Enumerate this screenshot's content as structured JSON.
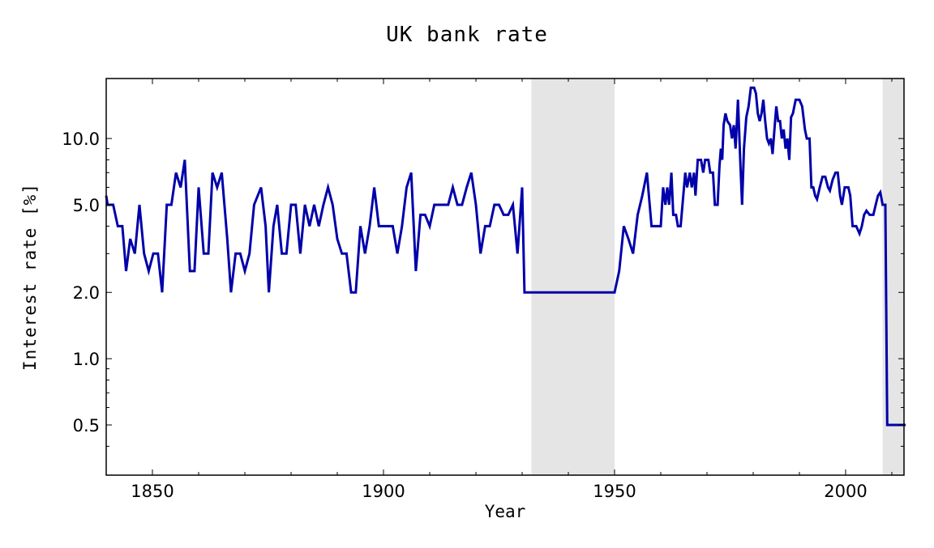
{
  "chart_data": {
    "type": "line",
    "title": "UK bank rate",
    "xlabel": "Year",
    "ylabel": "Interest rate [%]",
    "yscale": "log",
    "xlim": [
      1840,
      2013
    ],
    "ylim": [
      0.3,
      18
    ],
    "x_ticks": [
      1850,
      1900,
      1950,
      2000
    ],
    "y_ticks": [
      {
        "value": 0.5,
        "label": "0.5"
      },
      {
        "value": 1.0,
        "label": "1.0"
      },
      {
        "value": 2.0,
        "label": "2.0"
      },
      {
        "value": 5.0,
        "label": "5.0"
      },
      {
        "value": 10.0,
        "label": "10.0"
      }
    ],
    "line_color": "#0000aa",
    "shaded_regions": [
      {
        "x0": 1932,
        "x1": 1950,
        "color": "#e5e5e5"
      },
      {
        "x0": 2008,
        "x1": 2015,
        "color": "#e5e5e5"
      }
    ],
    "series": [
      {
        "name": "UK bank rate",
        "points": [
          [
            1840,
            5.5
          ],
          [
            1840.3,
            5
          ],
          [
            1841.5,
            5
          ],
          [
            1842.5,
            4
          ],
          [
            1843.5,
            4
          ],
          [
            1844.3,
            2.5
          ],
          [
            1845.2,
            3.5
          ],
          [
            1846.2,
            3
          ],
          [
            1847.2,
            5
          ],
          [
            1848.2,
            3
          ],
          [
            1849.2,
            2.5
          ],
          [
            1850.2,
            3
          ],
          [
            1851.2,
            3
          ],
          [
            1852.1,
            2
          ],
          [
            1853.1,
            5
          ],
          [
            1854.1,
            5
          ],
          [
            1855.1,
            7
          ],
          [
            1856.1,
            6
          ],
          [
            1857,
            8
          ],
          [
            1858.1,
            2.5
          ],
          [
            1859.1,
            2.5
          ],
          [
            1860,
            6
          ],
          [
            1861.1,
            3
          ],
          [
            1862.1,
            3
          ],
          [
            1863,
            7
          ],
          [
            1864,
            6
          ],
          [
            1865,
            7
          ],
          [
            1866.2,
            3.5
          ],
          [
            1867,
            2
          ],
          [
            1868,
            3
          ],
          [
            1869,
            3
          ],
          [
            1870,
            2.5
          ],
          [
            1871,
            3
          ],
          [
            1872,
            5
          ],
          [
            1873.5,
            6
          ],
          [
            1874.5,
            4
          ],
          [
            1875.2,
            2
          ],
          [
            1876.2,
            4
          ],
          [
            1877,
            5
          ],
          [
            1878,
            3
          ],
          [
            1879,
            3
          ],
          [
            1880,
            5
          ],
          [
            1881,
            5
          ],
          [
            1882,
            3
          ],
          [
            1883,
            5
          ],
          [
            1884,
            4
          ],
          [
            1885,
            5
          ],
          [
            1886,
            4
          ],
          [
            1887,
            5
          ],
          [
            1888,
            6
          ],
          [
            1889,
            5
          ],
          [
            1890,
            3.5
          ],
          [
            1891,
            3
          ],
          [
            1892,
            3
          ],
          [
            1893,
            2
          ],
          [
            1894,
            2
          ],
          [
            1895,
            4
          ],
          [
            1896,
            3
          ],
          [
            1897,
            4
          ],
          [
            1898,
            6
          ],
          [
            1899,
            4
          ],
          [
            1900,
            4
          ],
          [
            1901,
            4
          ],
          [
            1902,
            4
          ],
          [
            1903,
            3
          ],
          [
            1904,
            4
          ],
          [
            1905,
            6
          ],
          [
            1906,
            7
          ],
          [
            1907,
            2.5
          ],
          [
            1908,
            4.5
          ],
          [
            1909,
            4.5
          ],
          [
            1910,
            4
          ],
          [
            1911,
            5
          ],
          [
            1912,
            5
          ],
          [
            1913,
            5
          ],
          [
            1914,
            5
          ],
          [
            1915,
            6
          ],
          [
            1916,
            5
          ],
          [
            1917,
            5
          ],
          [
            1918,
            6
          ],
          [
            1919,
            7
          ],
          [
            1920,
            5
          ],
          [
            1921,
            3
          ],
          [
            1922,
            4
          ],
          [
            1923,
            4
          ],
          [
            1924,
            5
          ],
          [
            1925,
            5
          ],
          [
            1926,
            4.5
          ],
          [
            1927,
            4.5
          ],
          [
            1928,
            5
          ],
          [
            1929,
            3
          ],
          [
            1930,
            6
          ],
          [
            1930.5,
            2
          ],
          [
            1950,
            2
          ],
          [
            1951,
            2.5
          ],
          [
            1952,
            4
          ],
          [
            1953,
            3.5
          ],
          [
            1954,
            3
          ],
          [
            1955,
            4.5
          ],
          [
            1956,
            5.5
          ],
          [
            1957,
            7
          ],
          [
            1958,
            4
          ],
          [
            1959,
            4
          ],
          [
            1960,
            4
          ],
          [
            1960.5,
            6
          ],
          [
            1961,
            5
          ],
          [
            1961.4,
            6
          ],
          [
            1961.8,
            5
          ],
          [
            1962.3,
            7
          ],
          [
            1962.7,
            4.5
          ],
          [
            1963.3,
            4.5
          ],
          [
            1963.7,
            4
          ],
          [
            1964.3,
            4
          ],
          [
            1964.7,
            5
          ],
          [
            1965.3,
            7
          ],
          [
            1965.7,
            6
          ],
          [
            1966.3,
            7
          ],
          [
            1966.7,
            6
          ],
          [
            1967.2,
            7
          ],
          [
            1967.5,
            5.5
          ],
          [
            1968,
            8
          ],
          [
            1968.7,
            8
          ],
          [
            1969.2,
            7
          ],
          [
            1969.6,
            8
          ],
          [
            1970.3,
            8
          ],
          [
            1970.7,
            7
          ],
          [
            1971.3,
            7
          ],
          [
            1971.7,
            5
          ],
          [
            1972.3,
            5
          ],
          [
            1972.7,
            7.5
          ],
          [
            1973,
            9
          ],
          [
            1973.3,
            8
          ],
          [
            1973.6,
            11.5
          ],
          [
            1974,
            13
          ],
          [
            1974.4,
            12
          ],
          [
            1975,
            11.5
          ],
          [
            1975.4,
            10
          ],
          [
            1975.8,
            11.5
          ],
          [
            1976.2,
            9
          ],
          [
            1976.7,
            15
          ],
          [
            1977.2,
            8
          ],
          [
            1977.6,
            5
          ],
          [
            1978,
            9
          ],
          [
            1978.5,
            12.5
          ],
          [
            1979,
            14
          ],
          [
            1979.5,
            17
          ],
          [
            1980.2,
            17
          ],
          [
            1980.6,
            16
          ],
          [
            1981,
            13
          ],
          [
            1981.4,
            12
          ],
          [
            1981.8,
            13
          ],
          [
            1982.2,
            15
          ],
          [
            1982.6,
            12
          ],
          [
            1983,
            10
          ],
          [
            1983.4,
            9.5
          ],
          [
            1983.8,
            10
          ],
          [
            1984.2,
            8.5
          ],
          [
            1984.6,
            11
          ],
          [
            1985,
            14
          ],
          [
            1985.4,
            12
          ],
          [
            1985.8,
            12
          ],
          [
            1986.2,
            10
          ],
          [
            1986.6,
            11
          ],
          [
            1987,
            9
          ],
          [
            1987.4,
            10
          ],
          [
            1987.8,
            8
          ],
          [
            1988.2,
            12.5
          ],
          [
            1988.6,
            13
          ],
          [
            1989.2,
            15
          ],
          [
            1990,
            15
          ],
          [
            1990.6,
            14
          ],
          [
            1991.2,
            11
          ],
          [
            1991.6,
            10
          ],
          [
            1992.2,
            10
          ],
          [
            1992.6,
            6
          ],
          [
            1993,
            6
          ],
          [
            1993.4,
            5.5
          ],
          [
            1993.8,
            5.3
          ],
          [
            1994.4,
            6
          ],
          [
            1995,
            6.7
          ],
          [
            1995.6,
            6.7
          ],
          [
            1996.2,
            6
          ],
          [
            1996.6,
            5.8
          ],
          [
            1997.2,
            6.5
          ],
          [
            1997.8,
            7
          ],
          [
            1998.3,
            7
          ],
          [
            1998.8,
            5.5
          ],
          [
            1999.2,
            5
          ],
          [
            1999.8,
            6
          ],
          [
            2000.6,
            6
          ],
          [
            2001,
            5.5
          ],
          [
            2001.5,
            4
          ],
          [
            2002.3,
            4
          ],
          [
            2003,
            3.7
          ],
          [
            2003.5,
            4
          ],
          [
            2004,
            4.5
          ],
          [
            2004.5,
            4.7
          ],
          [
            2005.2,
            4.5
          ],
          [
            2006,
            4.5
          ],
          [
            2006.5,
            5
          ],
          [
            2007,
            5.5
          ],
          [
            2007.5,
            5.7
          ],
          [
            2008,
            5
          ],
          [
            2008.6,
            5
          ],
          [
            2009,
            0.5
          ],
          [
            2013,
            0.5
          ]
        ]
      }
    ],
    "grid": false,
    "legend": null
  }
}
